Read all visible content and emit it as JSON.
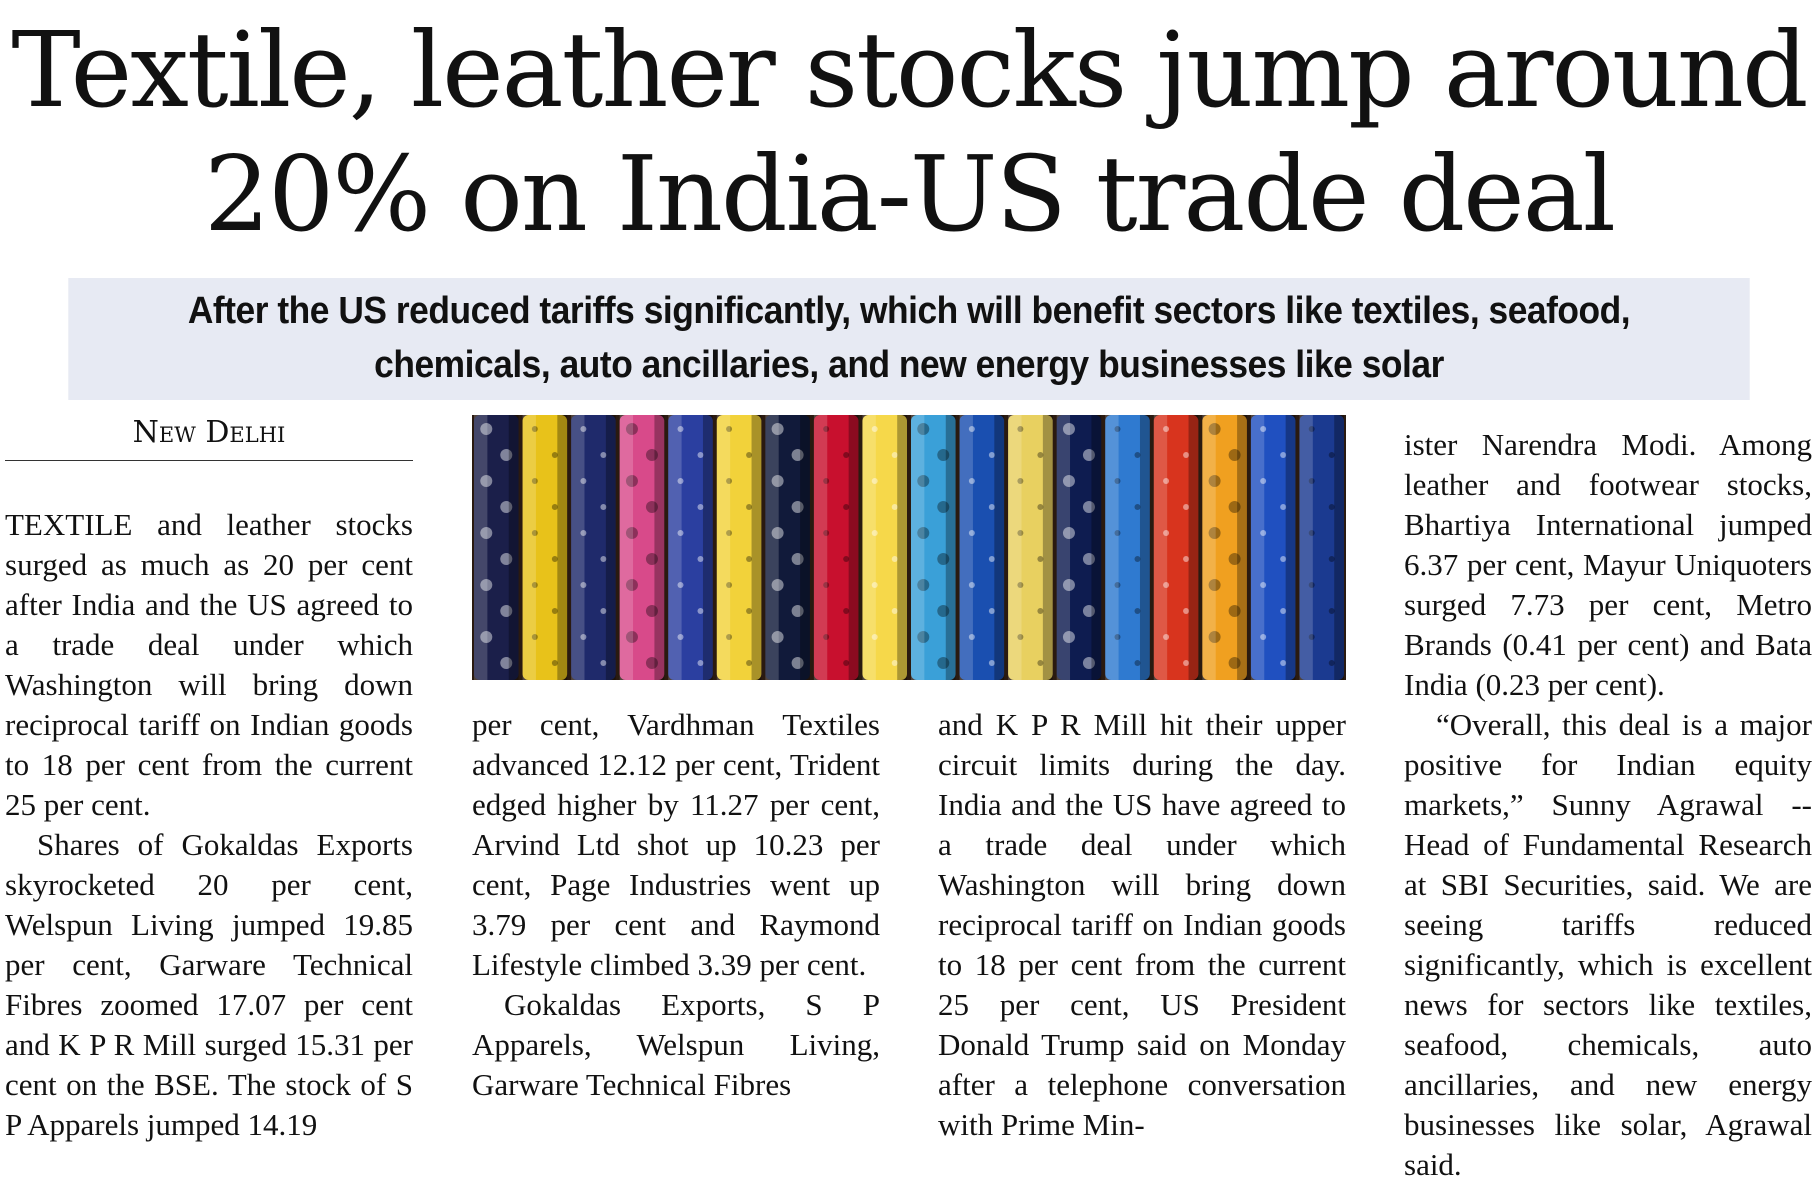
{
  "headline": {
    "line1": "Textile, leather stocks jump around",
    "line2": "20% on India-US trade deal"
  },
  "deck": {
    "line1": "After the US reduced tariffs significantly, which will benefit sectors like textiles, seafood,",
    "line2": "chemicals, auto ancillaries, and new energy businesses like solar"
  },
  "dateline": "New Delhi",
  "body": {
    "col1_p1": "TEXTILE and leather stocks surged as much as 20 per cent after India and the US agreed to a trade deal under which Washington will bring down reciprocal tariff on Indian goods to 18 per cent from the current 25 per cent.",
    "col1_p2": "Shares of Gokaldas Exports skyrocketed 20 per cent, Welspun Living jumped 19.85 per cent, Garware Technical Fibres zoomed 17.07 per cent and K P R Mill surged 15.31 per cent on the BSE. The stock of S P Apparels jumped 14.19",
    "col2_p1": "per cent, Vardhman Textiles advanced 12.12 per cent, Trident edged higher by 11.27 per cent, Arvind Ltd shot up 10.23 per cent, Page Industries went up 3.79 per cent and Raymond Lifestyle climbed 3.39 per cent.",
    "col2_p2": "Gokaldas Exports, S P Apparels, Welspun Living, Garware Technical Fibres",
    "col3_p1": "and K P R Mill hit their upper circuit limits during the day.  India and the US have agreed to a trade deal under which Washington will bring down reciprocal tariff on Indian goods to 18 per cent from the current 25 per cent, US President Donald Trump said on Monday after a telephone conversation with Prime Min-",
    "col4_p1": "ister Narendra Modi. Among leather and footwear stocks, Bhartiya International jumped 6.37 per cent, Mayur Uniquoters surged 7.73 per cent, Metro Brands (0.41 per cent) and Bata India (0.23 per cent).",
    "col4_p2": "“Overall, this deal is a major positive for Indian equity markets,” Sunny Agrawal -- Head of Fundamental Research at SBI Securities, said. We are seeing tariffs reduced significantly, which is excellent news for sectors like textiles, seafood, chemicals, auto ancillaries, and new energy businesses like solar, Agrawal said."
  },
  "photo": {
    "icon": "fabric-rolls-photo",
    "bolt_colors": [
      "#1b1f4a",
      "#e8c21a",
      "#1f2a6b",
      "#d84a8a",
      "#2b3fa0",
      "#f2d23a",
      "#111a3a",
      "#c8102e",
      "#f6d84a",
      "#3aa0d8",
      "#1a4fb0",
      "#e8d060",
      "#0e1c50",
      "#2f7ad0",
      "#d8341e",
      "#f0a020",
      "#2050c0",
      "#1b3a90"
    ]
  }
}
